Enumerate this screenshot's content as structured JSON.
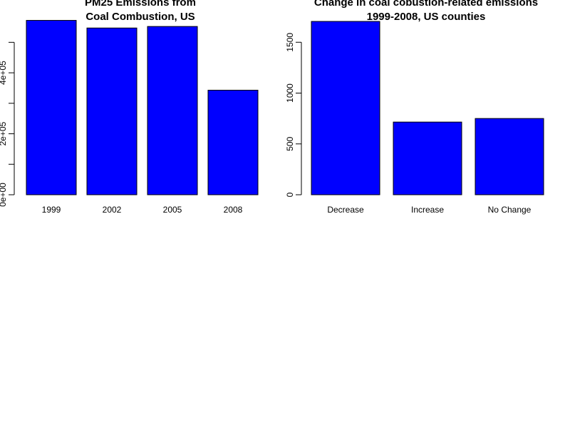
{
  "chart_data": [
    {
      "type": "bar",
      "title": [
        "PM25 Emissions from",
        "Coal Combustion, US"
      ],
      "categories": [
        "1999",
        "2002",
        "2005",
        "2008"
      ],
      "values": [
        572000,
        547000,
        552000,
        343000
      ],
      "ylim": [
        0,
        600000
      ],
      "yticks": [
        0,
        100000,
        200000,
        300000,
        400000,
        500000
      ],
      "ytick_labels": [
        "0e+00",
        "",
        "2e+05",
        "",
        "4e+05",
        ""
      ],
      "xlabel": "",
      "ylabel": "",
      "bar_color": "#0000FF",
      "grid": false,
      "legend": "none"
    },
    {
      "type": "bar",
      "title": [
        "Change in coal cobustion-related emissions",
        "1999-2008, US counties"
      ],
      "categories": [
        "Decrease",
        "Increase",
        "No Change"
      ],
      "values": [
        1705,
        715,
        750
      ],
      "ylim": [
        0,
        1800
      ],
      "yticks": [
        0,
        500,
        1000,
        1500
      ],
      "ytick_labels": [
        "0",
        "500",
        "1000",
        "1500"
      ],
      "xlabel": "",
      "ylabel": "",
      "bar_color": "#0000FF",
      "grid": false,
      "legend": "none"
    }
  ]
}
